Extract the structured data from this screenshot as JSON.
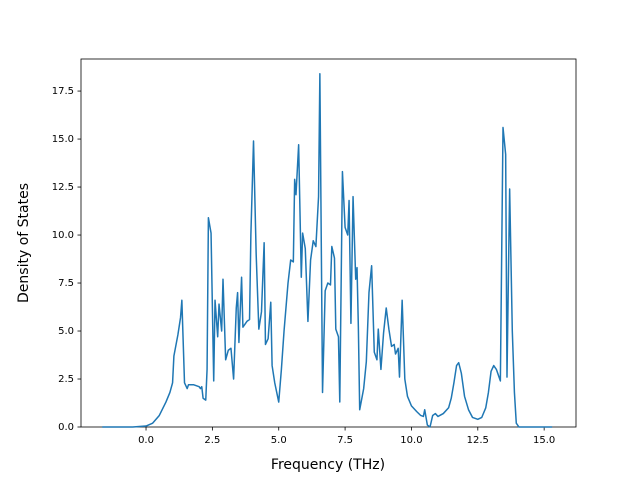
{
  "chart_data": {
    "type": "line",
    "xlabel": "Frequency (THz)",
    "ylabel": "Density of States",
    "xlim": [
      -2.45,
      16.2
    ],
    "ylim": [
      0,
      19.17
    ],
    "xticks": [
      {
        "value": 0,
        "label": "0.0"
      },
      2.5,
      {
        "value": 5,
        "label": "5.0"
      },
      7.5,
      {
        "value": 10,
        "label": "10.0"
      },
      12.5,
      {
        "value": 15,
        "label": "15.0"
      }
    ],
    "yticks": [
      {
        "value": 0,
        "label": "0.0"
      },
      2.5,
      {
        "value": 5,
        "label": "5.0"
      },
      7.5,
      {
        "value": 10,
        "label": "10.0"
      },
      12.5,
      {
        "value": 15,
        "label": "15.0"
      },
      17.5
    ],
    "series": [
      {
        "color": "#1f77b4",
        "x": [
          -1.65,
          -0.5,
          0.0,
          0.25,
          0.5,
          0.75,
          0.9,
          1.0,
          1.05,
          1.2,
          1.3,
          1.35,
          1.45,
          1.55,
          1.6,
          1.8,
          2.0,
          2.05,
          2.1,
          2.15,
          2.25,
          2.3,
          2.35,
          2.45,
          2.55,
          2.6,
          2.7,
          2.75,
          2.85,
          2.9,
          3.0,
          3.1,
          3.2,
          3.3,
          3.4,
          3.45,
          3.5,
          3.6,
          3.65,
          3.8,
          3.9,
          3.95,
          4.05,
          4.15,
          4.25,
          4.35,
          4.45,
          4.5,
          4.6,
          4.7,
          4.75,
          4.85,
          5.0,
          5.1,
          5.2,
          5.35,
          5.45,
          5.55,
          5.6,
          5.65,
          5.75,
          5.85,
          5.9,
          6.0,
          6.1,
          6.2,
          6.3,
          6.4,
          6.5,
          6.55,
          6.65,
          6.75,
          6.85,
          6.95,
          7.0,
          7.1,
          7.15,
          7.25,
          7.3,
          7.4,
          7.5,
          7.6,
          7.65,
          7.72,
          7.8,
          7.9,
          7.95,
          8.0,
          8.05,
          8.2,
          8.3,
          8.4,
          8.5,
          8.6,
          8.7,
          8.75,
          8.85,
          8.95,
          9.05,
          9.15,
          9.25,
          9.35,
          9.4,
          9.5,
          9.55,
          9.65,
          9.75,
          9.85,
          10.0,
          10.2,
          10.35,
          10.45,
          10.5,
          10.6,
          10.7,
          10.8,
          10.9,
          11.0,
          11.2,
          11.4,
          11.5,
          11.6,
          11.7,
          11.78,
          11.88,
          12.0,
          12.15,
          12.3,
          12.5,
          12.65,
          12.8,
          12.9,
          13.0,
          13.1,
          13.2,
          13.35,
          13.45,
          13.55,
          13.6,
          13.7,
          13.8,
          13.88,
          13.95,
          14.05,
          15.3
        ],
        "values": [
          0,
          0,
          0.05,
          0.2,
          0.6,
          1.3,
          1.8,
          2.3,
          3.7,
          4.8,
          5.7,
          6.6,
          2.3,
          2.0,
          2.2,
          2.2,
          2.1,
          2.0,
          2.1,
          1.5,
          1.4,
          3.0,
          10.9,
          10.1,
          2.4,
          6.6,
          4.7,
          6.4,
          5.0,
          7.7,
          3.5,
          4.0,
          4.1,
          2.5,
          6.2,
          7.0,
          4.4,
          7.8,
          5.2,
          5.5,
          5.6,
          10.0,
          14.9,
          9.0,
          5.1,
          6.0,
          9.6,
          4.3,
          4.6,
          6.5,
          3.2,
          2.3,
          1.3,
          3.0,
          5.0,
          7.5,
          8.7,
          8.6,
          12.9,
          12.1,
          14.7,
          7.8,
          10.1,
          9.3,
          5.5,
          8.7,
          9.7,
          9.4,
          12.0,
          18.4,
          1.8,
          7.1,
          7.5,
          7.4,
          9.4,
          8.8,
          5.1,
          4.7,
          1.3,
          13.3,
          10.4,
          10.0,
          11.8,
          5.4,
          12.0,
          7.7,
          8.3,
          5.2,
          0.9,
          2.0,
          3.4,
          7.0,
          8.4,
          3.9,
          3.5,
          5.1,
          3.0,
          4.9,
          6.2,
          5.1,
          4.2,
          4.3,
          3.8,
          4.1,
          2.6,
          6.6,
          2.5,
          1.6,
          1.1,
          0.8,
          0.6,
          0.55,
          0.9,
          0.1,
          0.0,
          0.6,
          0.7,
          0.55,
          0.7,
          1.0,
          1.5,
          2.3,
          3.2,
          3.35,
          2.8,
          1.6,
          0.9,
          0.5,
          0.4,
          0.5,
          1.0,
          1.8,
          2.9,
          3.2,
          3.0,
          2.4,
          15.6,
          14.2,
          2.6,
          12.4,
          5.0,
          1.8,
          0.2,
          0.0,
          0.0
        ]
      }
    ]
  }
}
